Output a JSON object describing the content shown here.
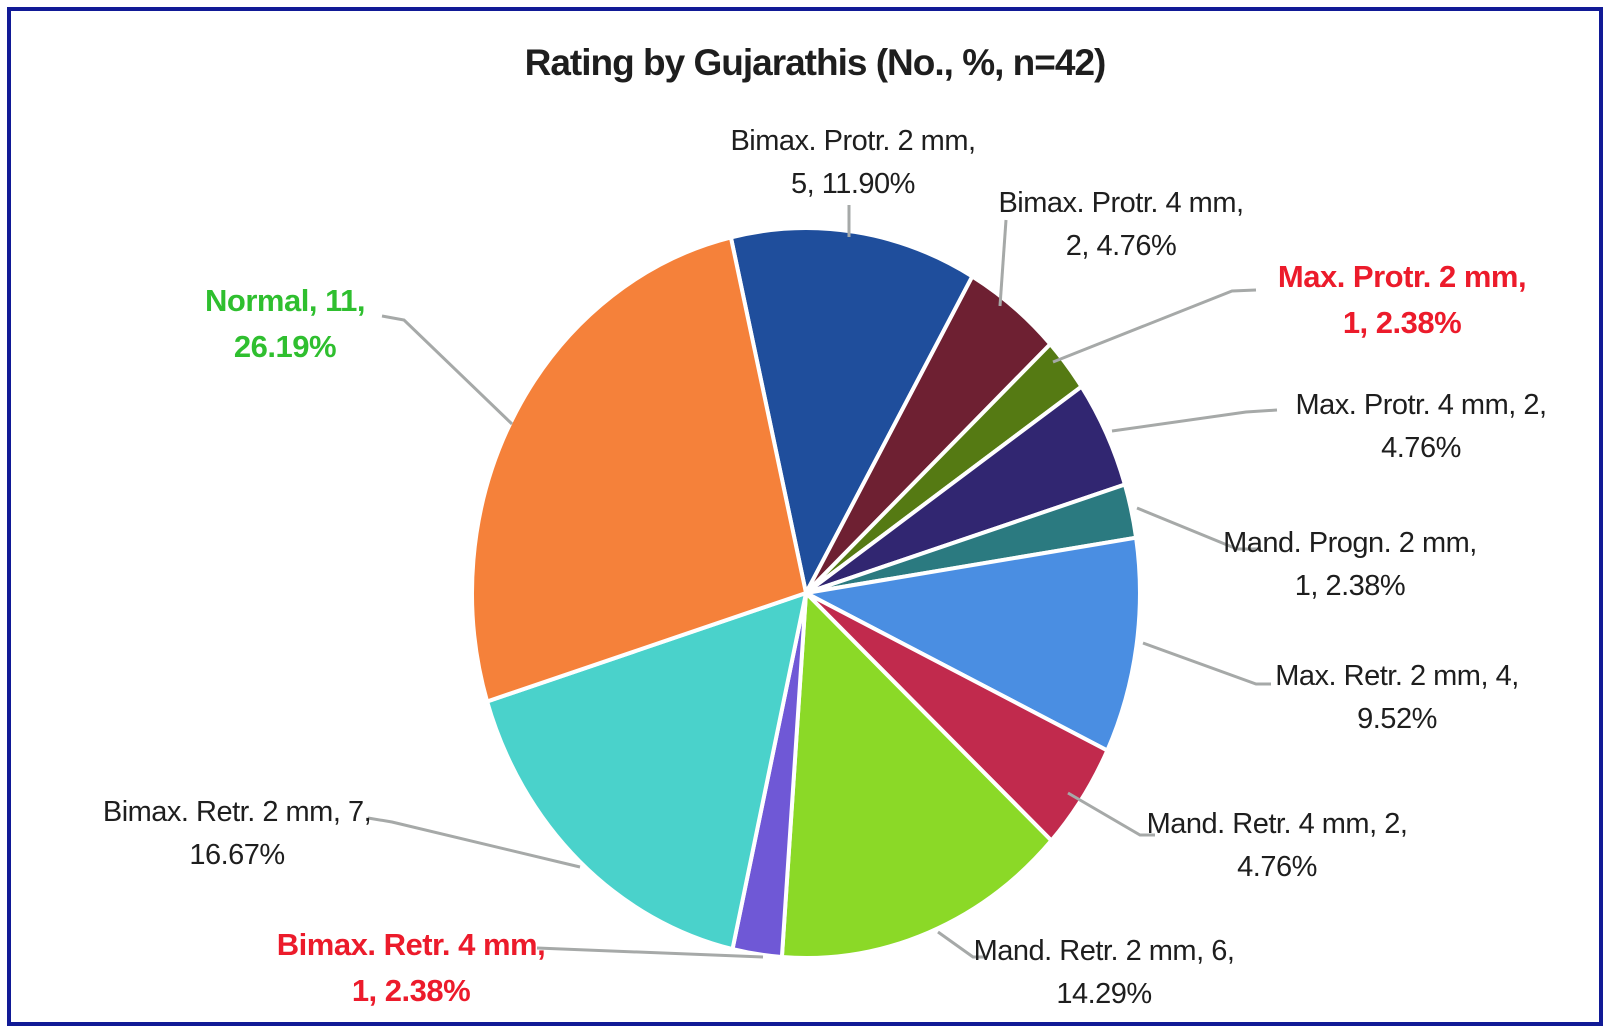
{
  "chart_data": {
    "type": "pie",
    "title": "Rating by Gujarathis (No., %, n=42)",
    "n": 42,
    "legend": "none",
    "start_angle_deg": -13,
    "slices": [
      {
        "name": "Bimax. Protr. 2 mm",
        "count": 5,
        "pct": 11.9,
        "color": "#1F4E9C",
        "emphasis": "black"
      },
      {
        "name": "Bimax. Protr. 4 mm",
        "count": 2,
        "pct": 4.76,
        "color": "#6E2032",
        "emphasis": "black"
      },
      {
        "name": "Max. Protr. 2 mm",
        "count": 1,
        "pct": 2.38,
        "color": "#557A13",
        "emphasis": "red"
      },
      {
        "name": "Max. Protr. 4 mm",
        "count": 2,
        "pct": 4.76,
        "color": "#312671",
        "emphasis": "black"
      },
      {
        "name": "Mand. Progn. 2 mm",
        "count": 1,
        "pct": 2.38,
        "color": "#2B7A80",
        "emphasis": "black"
      },
      {
        "name": "Max. Retr. 2 mm",
        "count": 4,
        "pct": 9.52,
        "color": "#4A8EE2",
        "emphasis": "black"
      },
      {
        "name": "Mand. Retr. 4 mm",
        "count": 2,
        "pct": 4.76,
        "color": "#C12A4D",
        "emphasis": "black"
      },
      {
        "name": "Mand. Retr. 2 mm",
        "count": 6,
        "pct": 14.29,
        "color": "#8BD927",
        "emphasis": "black"
      },
      {
        "name": "Bimax. Retr. 4 mm",
        "count": 1,
        "pct": 2.38,
        "color": "#6F58D6",
        "emphasis": "red"
      },
      {
        "name": "Bimax. Retr. 2 mm",
        "count": 7,
        "pct": 16.67,
        "color": "#4AD2CB",
        "emphasis": "black"
      },
      {
        "name": "Normal",
        "count": 11,
        "pct": 26.19,
        "color": "#F5813A",
        "emphasis": "green"
      }
    ],
    "callouts": [
      {
        "line1": "Bimax. Protr. 2 mm,",
        "line2": "5, 11.90%"
      },
      {
        "line1": "Bimax. Protr. 4 mm,",
        "line2": "2, 4.76%"
      },
      {
        "line1": "Max. Protr. 2 mm,",
        "line2": "1, 2.38%"
      },
      {
        "line1": "Max. Protr. 4 mm, 2,",
        "line2": "4.76%"
      },
      {
        "line1": "Mand. Progn. 2 mm,",
        "line2": "1, 2.38%"
      },
      {
        "line1": "Max. Retr. 2 mm, 4,",
        "line2": "9.52%"
      },
      {
        "line1": "Mand. Retr. 4 mm, 2,",
        "line2": "4.76%"
      },
      {
        "line1": "Mand. Retr. 2 mm, 6,",
        "line2": "14.29%"
      },
      {
        "line1": "Bimax. Retr. 4 mm,",
        "line2": "1, 2.38%"
      },
      {
        "line1": "Bimax. Retr. 2 mm, 7,",
        "line2": "16.67%"
      },
      {
        "line1": "Normal, 11,",
        "line2": "26.19%"
      }
    ],
    "colors": {
      "label_black": "#1E1E1E",
      "label_red": "#EC1B2B",
      "label_green": "#2FBF2F",
      "leader_line": "#A6A9A8",
      "slice_border": "#FFFFFF",
      "frame_border": "#111A96",
      "background": "#FFFFFF",
      "title_text": "#1E1E1E"
    }
  }
}
